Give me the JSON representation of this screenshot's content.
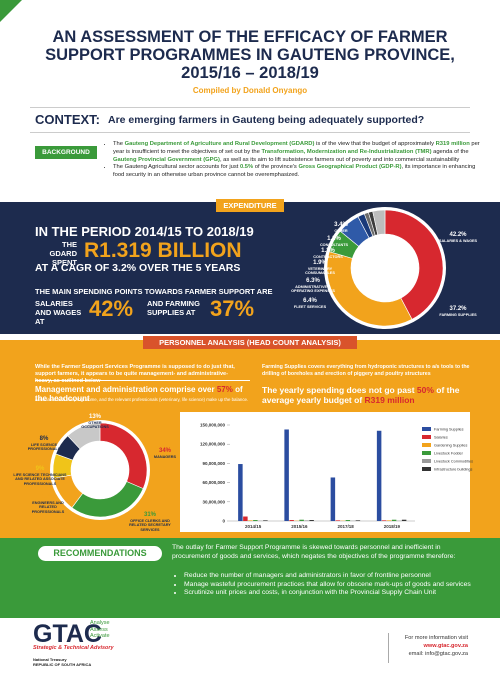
{
  "header": {
    "title_lines": [
      "AN ASSESSMENT OF THE EFFICACY OF FARMER",
      "SUPPORT PROGRAMMES IN GAUTENG PROVINCE,",
      "2015/16 – 2018/19"
    ],
    "author": "Compiled by Donald Onyango"
  },
  "context": {
    "label": "CONTEXT:",
    "question": "Are emerging farmers in Gauteng being adequately supported?"
  },
  "background": {
    "label": "BACKGROUND",
    "bullets": [
      [
        "The ",
        "Gauteng Department of Agriculture and Rural Development (GDARD)",
        " is of the view that the budget of approximately ",
        "R319 million",
        " per year is insufficient to meet the objectives of set out by the ",
        "Transformation, Modernization and Re-Industrialization (TMR)",
        " agenda of the ",
        "Gauteng Provincial Government (GPG)",
        ", as well as its aim to lift subsistence farmers out of poverty and into commercial sustainability"
      ],
      [
        "The Gauteng Agricultural sector accounts for just ",
        "0.5%",
        " of the province's ",
        "Gross Geographical Product (GDP-R)",
        ", its importance in enhancing food security in an otherwise urban province cannot be overemphasized."
      ]
    ]
  },
  "expenditure": {
    "label": "EXPENDITURE",
    "period": "IN THE PERIOD 2014/15 TO 2018/19",
    "spent_label": "THE GDARD SPENT",
    "amount": "R1.319 BILLION",
    "cagr": "AT A CAGR OF 3.2% OVER THE 5 YEARS",
    "main_points": "THE MAIN SPENDING POINTS TOWARDS FARMER SUPPORT ARE",
    "salaries_label": "SALARIES AND WAGES AT",
    "salaries_value": "42%",
    "supplies_label": "AND FARMING SUPPLIES AT",
    "supplies_value": "37%"
  },
  "personnel": {
    "label": "PERSONNEL ANALYSIS (HEAD COUNT ANALYSIS)",
    "intro": "While the Farmer Support Services Programme is supposed to do just that, support farmers, it appears to be quite management- and administrative-heavy, as outlined below",
    "headline": [
      "Management and administration comprise over ",
      "57%",
      " of the headcount"
    ],
    "subline": "associated with this programme, and the relevant professionals (veterinary, life science) make up the balance.",
    "supplies_note": "Farming Supplies covers everything from hydroponic structures to a/s tools to the drilling of boreholes and erection of piggery and poultry structures",
    "spending_headline": [
      "The yearly spending does not go past ",
      "50%",
      " of the average yearly budget of ",
      "R319 million"
    ]
  },
  "recommendations": {
    "label": "RECOMMENDATIONS",
    "intro": "The outlay for Farmer Support Programme is skewed towards personnel and inefficient in procurement of goods and services, which negates the objectives of the programme therefore:",
    "bullets": [
      "Reduce the number of managers and administrators in favor of frontline personnel",
      "Manage wasteful procurement practices that allow for obscene mark-ups of goods and services",
      "Scrutinize unit prices and costs, in conjunction with the Provincial Supply Chain Unit"
    ]
  },
  "footer": {
    "logo": "GTAC",
    "taglines": [
      "Analyse",
      "Assess",
      "Activate"
    ],
    "subtitle": "Strategic & Technical Advisory",
    "treasury": "National Treasury",
    "republic": "REPUBLIC OF SOUTH AFRICA",
    "info": "For more information visit",
    "url": "www.gtac.gov.za",
    "email": "email: info@gtac.gov.za"
  },
  "chart_data": [
    {
      "type": "donut",
      "categories": [
        "SALARIES & WAGES",
        "FARMING SUPPLIES",
        "FLEET SERVICES",
        "ADMINISTRATIVE & OPERATING EXPENSES",
        "VETERINARY CONSUMABLES",
        "CONTRACTORS",
        "CONSULTANTS",
        "OTHER"
      ],
      "values": [
        42.2,
        37.2,
        6.4,
        6.3,
        1.9,
        1.2,
        1.2,
        3.4
      ],
      "value_labels": [
        "42.2%",
        "37.2%",
        "6.4%",
        "6.3%",
        "1.9%",
        "1.2%",
        "1.2%",
        "3.4%"
      ],
      "colors": [
        "#d7282f",
        "#f2a31c",
        "#3a9a3a",
        "#2f5aa8",
        "#1a3a7a",
        "#6b6b6b",
        "#3c3c3c",
        "#bdbdbd"
      ]
    },
    {
      "type": "donut",
      "categories": [
        "MANAGERS",
        "OFFICE CLERKS AND RELATED SECRETARY SERVICES",
        "ENGINEERS AND RELATED PROFESSIONALS",
        "LIFE SCIENCE TECHNICIANS AND RELATED ASSOCIATE PROFESSIONALS",
        "LIFE SCIENCE PROFESSIONALS",
        "OTHER OCCUPATIONS"
      ],
      "values": [
        34,
        31,
        13,
        9,
        8,
        13
      ],
      "value_labels": [
        "34%",
        "31%",
        "13%",
        "9%",
        "8%",
        "13%"
      ],
      "colors": [
        "#d7282f",
        "#3a9a3a",
        "#f2a31c",
        "#f0c419",
        "#1d2b4e",
        "#c8c8c8"
      ]
    },
    {
      "type": "bar",
      "categories": [
        "2014/15",
        "2015/16",
        "2017/18",
        "2018/19"
      ],
      "series": [
        {
          "name": "Farming Supplies",
          "color": "#2b4da0",
          "values": [
            89000000,
            143000000,
            68000000,
            141000000
          ]
        },
        {
          "name": "Salaries",
          "color": "#d7282f",
          "values": [
            7000000,
            1500000,
            1000000,
            1000000
          ]
        },
        {
          "name": "Gardening Supplies",
          "color": "#f2a31c",
          "values": [
            1000000,
            500000,
            500000,
            1000000
          ]
        },
        {
          "name": "Livestock Fodder",
          "color": "#3a9a3a",
          "values": [
            1500000,
            2000000,
            1500000,
            2000000
          ]
        },
        {
          "name": "Livestock Commodities",
          "color": "#9a9a9a",
          "values": [
            500000,
            1000000,
            500000,
            500000
          ]
        },
        {
          "name": "Infrastructure buildings",
          "color": "#333333",
          "values": [
            1000000,
            1500000,
            1000000,
            2000000
          ]
        }
      ],
      "ylim": [
        0,
        150000000
      ],
      "yticks": [
        0,
        {
          "value": 30000000,
          "label": "30,000,000"
        },
        {
          "value": 60000000,
          "label": "60,000,000"
        },
        {
          "value": 90000000,
          "label": "90,000,000"
        },
        {
          "value": 120000000,
          "label": "120,000,000"
        },
        {
          "value": 150000000,
          "label": "150,000,000"
        }
      ]
    }
  ]
}
